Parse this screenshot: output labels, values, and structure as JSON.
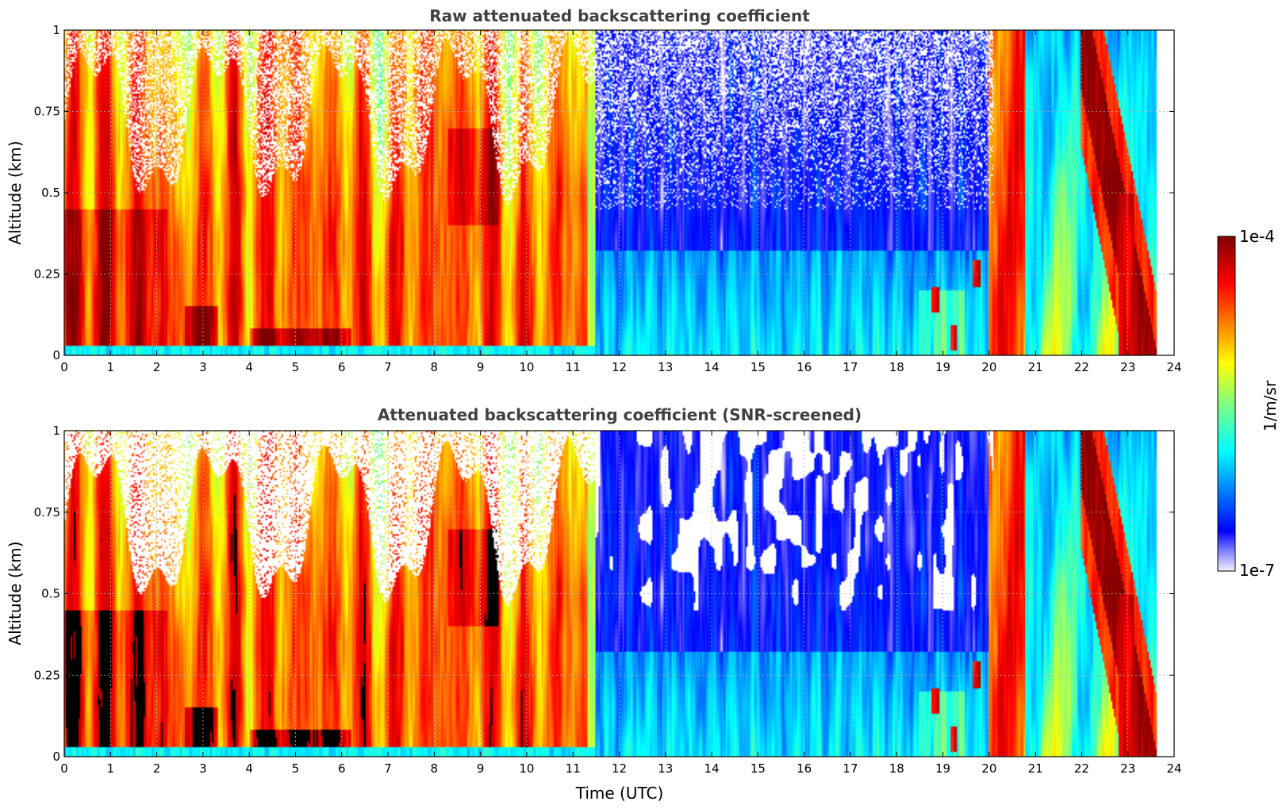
{
  "chart_data": [
    {
      "type": "heatmap",
      "title": "Raw attenuated backscattering coefficient",
      "xlabel": "",
      "ylabel": "Altitude (km)",
      "xlim": [
        0,
        24
      ],
      "ylim": [
        0,
        1
      ],
      "x_ticks": [
        "0",
        "1",
        "2",
        "3",
        "4",
        "5",
        "6",
        "7",
        "8",
        "9",
        "10",
        "11",
        "12",
        "13",
        "14",
        "15",
        "16",
        "17",
        "18",
        "19",
        "20",
        "21",
        "22",
        "23",
        "24"
      ],
      "y_ticks": [
        "0",
        "0.25",
        "0.5",
        "0.75",
        "1"
      ],
      "grid": true,
      "screened": false
    },
    {
      "type": "heatmap",
      "title": "Attenuated backscattering coefficient (SNR-screened)",
      "xlabel": "Time (UTC)",
      "ylabel": "Altitude (km)",
      "xlim": [
        0,
        24
      ],
      "ylim": [
        0,
        1
      ],
      "x_ticks": [
        "0",
        "1",
        "2",
        "3",
        "4",
        "5",
        "6",
        "7",
        "8",
        "9",
        "10",
        "11",
        "12",
        "13",
        "14",
        "15",
        "16",
        "17",
        "18",
        "19",
        "20",
        "21",
        "22",
        "23",
        "24"
      ],
      "y_ticks": [
        "0",
        "0.25",
        "0.5",
        "0.75",
        "1"
      ],
      "grid": true,
      "screened": true
    }
  ],
  "colorbar": {
    "label": "1/m/sr",
    "max_label": "1e-4",
    "min_label": "1e-7",
    "scale": "log",
    "range": [
      1e-07,
      0.0001
    ]
  },
  "data_end_time_utc": 23.65
}
